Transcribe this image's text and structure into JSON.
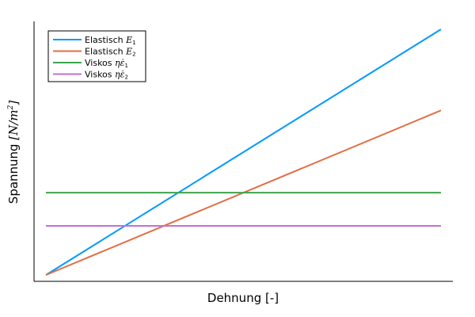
{
  "chart_data": {
    "type": "line",
    "title": "",
    "xlabel": "Dehnung [-]",
    "ylabel_text": "Spannung ",
    "ylabel_math": "[N/m",
    "ylabel_sup": "2",
    "ylabel_close": "]",
    "xlim": [
      0,
      1
    ],
    "ylim": [
      0,
      1.0
    ],
    "grid": false,
    "legend_position": "top-left",
    "series": [
      {
        "name": "Elastisch E₁",
        "label_text": "Elastisch ",
        "label_math": "E",
        "label_sub": "1",
        "color": "#009af9",
        "x": [
          0,
          1
        ],
        "y": [
          0,
          1.0
        ]
      },
      {
        "name": "Elastisch E₂",
        "label_text": "Elastisch ",
        "label_math": "E",
        "label_sub": "2",
        "color": "#e26f46",
        "x": [
          0,
          1
        ],
        "y": [
          0,
          0.67
        ]
      },
      {
        "name": "Viskos ηε̇₁",
        "label_text": "Viskos ",
        "label_math": "ηε̇",
        "label_sub": "1",
        "color": "#3da44d",
        "x": [
          0,
          1
        ],
        "y": [
          0.335,
          0.335
        ]
      },
      {
        "name": "Viskos ηε̇₂",
        "label_text": "Viskos ",
        "label_math": "ηε̇",
        "label_sub": "2",
        "color": "#c271d2",
        "x": [
          0,
          1
        ],
        "y": [
          0.2,
          0.2
        ]
      }
    ]
  }
}
